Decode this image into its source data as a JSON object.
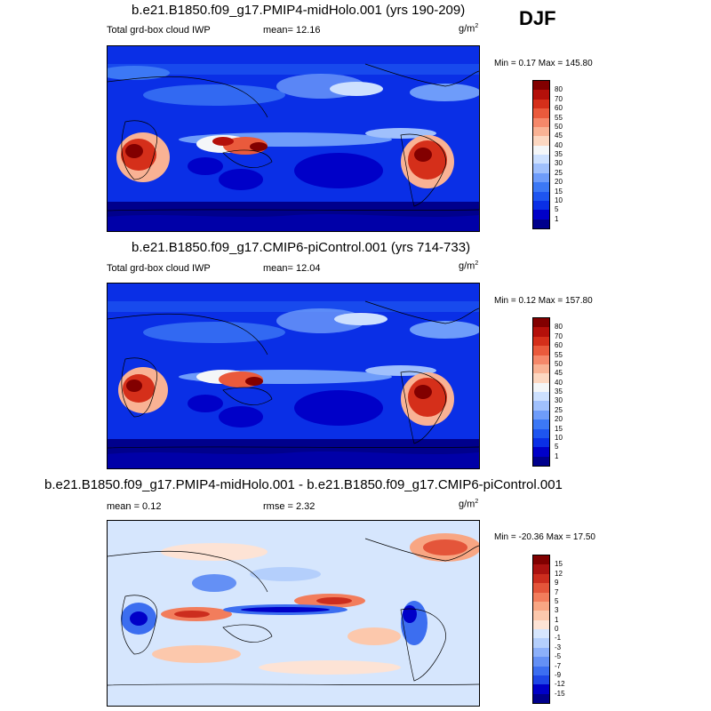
{
  "season": "DJF",
  "units_base": "g/m",
  "units_exp": "2",
  "panels": [
    {
      "title": "b.e21.B1850.f09_g17.PMIP4-midHolo.001 (yrs 190-209)",
      "variable": "Total grd-box cloud IWP",
      "mean": "mean=  12.16",
      "minmax": "Min =   0.17 Max = 145.80"
    },
    {
      "title": "b.e21.B1850.f09_g17.CMIP6-piControl.001 (yrs 714-733)",
      "variable": "Total grd-box cloud IWP",
      "mean": "mean=  12.04",
      "minmax": "Min =   0.12 Max = 157.80"
    },
    {
      "title": "b.e21.B1850.f09_g17.PMIP4-midHolo.001 - b.e21.B1850.f09_g17.CMIP6-piControl.001",
      "mean": "mean =   0.12",
      "rmse": "rmse =   2.32",
      "minmax": "Min = -20.36 Max =  17.50"
    }
  ],
  "chart_data": [
    {
      "type": "heatmap",
      "title": "b.e21.B1850.f09_g17.PMIP4-midHolo.001 (yrs 190-209)",
      "variable": "Total grd-box cloud IWP",
      "units": "g/m2",
      "season": "DJF",
      "mean": 12.16,
      "min": 0.17,
      "max": 145.8,
      "colorbar_levels": [
        1,
        5,
        10,
        15,
        20,
        25,
        30,
        35,
        40,
        45,
        50,
        55,
        60,
        70,
        80
      ],
      "colorbar_colors": [
        "#00008c",
        "#0000c8",
        "#0a2fe6",
        "#1e55f0",
        "#3c78f5",
        "#6e9cfa",
        "#a0c0fc",
        "#cde0fe",
        "#f4f6f8",
        "#fcd7c1",
        "#f9b294",
        "#f5886a",
        "#ea5a3c",
        "#d52f1a",
        "#b4100a",
        "#820000"
      ]
    },
    {
      "type": "heatmap",
      "title": "b.e21.B1850.f09_g17.CMIP6-piControl.001 (yrs 714-733)",
      "variable": "Total grd-box cloud IWP",
      "units": "g/m2",
      "season": "DJF",
      "mean": 12.04,
      "min": 0.12,
      "max": 157.8,
      "colorbar_levels": [
        1,
        5,
        10,
        15,
        20,
        25,
        30,
        35,
        40,
        45,
        50,
        55,
        60,
        70,
        80
      ],
      "colorbar_colors": [
        "#00008c",
        "#0000c8",
        "#0a2fe6",
        "#1e55f0",
        "#3c78f5",
        "#6e9cfa",
        "#a0c0fc",
        "#cde0fe",
        "#f4f6f8",
        "#fcd7c1",
        "#f9b294",
        "#f5886a",
        "#ea5a3c",
        "#d52f1a",
        "#b4100a",
        "#820000"
      ]
    },
    {
      "type": "heatmap",
      "title": "b.e21.B1850.f09_g17.PMIP4-midHolo.001 - b.e21.B1850.f09_g17.CMIP6-piControl.001",
      "units": "g/m2",
      "season": "DJF",
      "mean": 0.12,
      "rmse": 2.32,
      "min": -20.36,
      "max": 17.5,
      "colorbar_levels": [
        -15,
        -12,
        -9,
        -7,
        -5,
        -3,
        -1,
        0,
        1,
        3,
        5,
        7,
        9,
        12,
        15
      ],
      "colorbar_colors": [
        "#00008c",
        "#0000c8",
        "#1e46e6",
        "#3c6ef0",
        "#6490f5",
        "#8cb0fa",
        "#b4cffc",
        "#d6e6fd",
        "#fde3d5",
        "#fcc8ac",
        "#f8a683",
        "#f27d5c",
        "#e4553a",
        "#cc2d1e",
        "#aa1210",
        "#800000"
      ]
    }
  ]
}
